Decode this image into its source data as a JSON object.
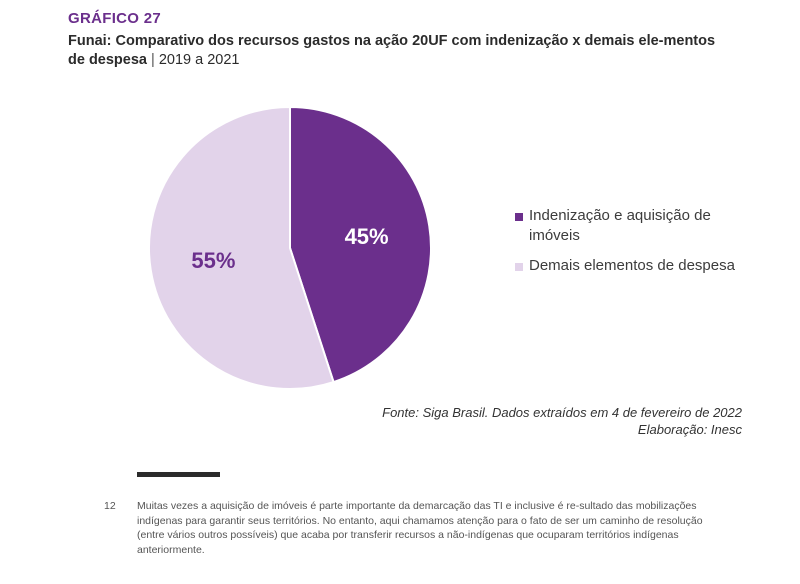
{
  "header": {
    "kicker": "GRÁFICO 27",
    "title_bold": "Funai: Comparativo dos recursos gastos na ação 20UF com indenização x demais ele-mentos de despesa",
    "title_separator": " | ",
    "title_period": "2019 a 2021"
  },
  "colors": {
    "accent": "#6b2f8c",
    "slice_indenizacao": "#6b2f8c",
    "slice_demais": "#e2d3ea",
    "label_on_dark": "#ffffff",
    "label_on_light": "#6b2f8c"
  },
  "chart_data": {
    "type": "pie",
    "slices": [
      {
        "label": "Indenização e aquisição de imóveis",
        "value": 45,
        "display": "45%",
        "color": "#6b2f8c"
      },
      {
        "label": "Demais elementos de despesa",
        "value": 55,
        "display": "55%",
        "color": "#e2d3ea"
      }
    ],
    "legend_position": "right"
  },
  "source": {
    "line1": "Fonte: Siga Brasil. Dados extraídos em 4 de fevereiro de 2022",
    "line2": "Elaboração: Inesc"
  },
  "footnote": {
    "number": "12",
    "text": "Muitas vezes a aquisição de imóveis é parte importante da demarcação das TI e inclusive é re-sultado das mobilizações indígenas para garantir seus territórios. No entanto, aqui chamamos atenção para o fato de ser um caminho de resolução (entre vários outros possíveis) que acaba por transferir recursos a não-indígenas que ocuparam territórios indígenas anteriormente."
  }
}
